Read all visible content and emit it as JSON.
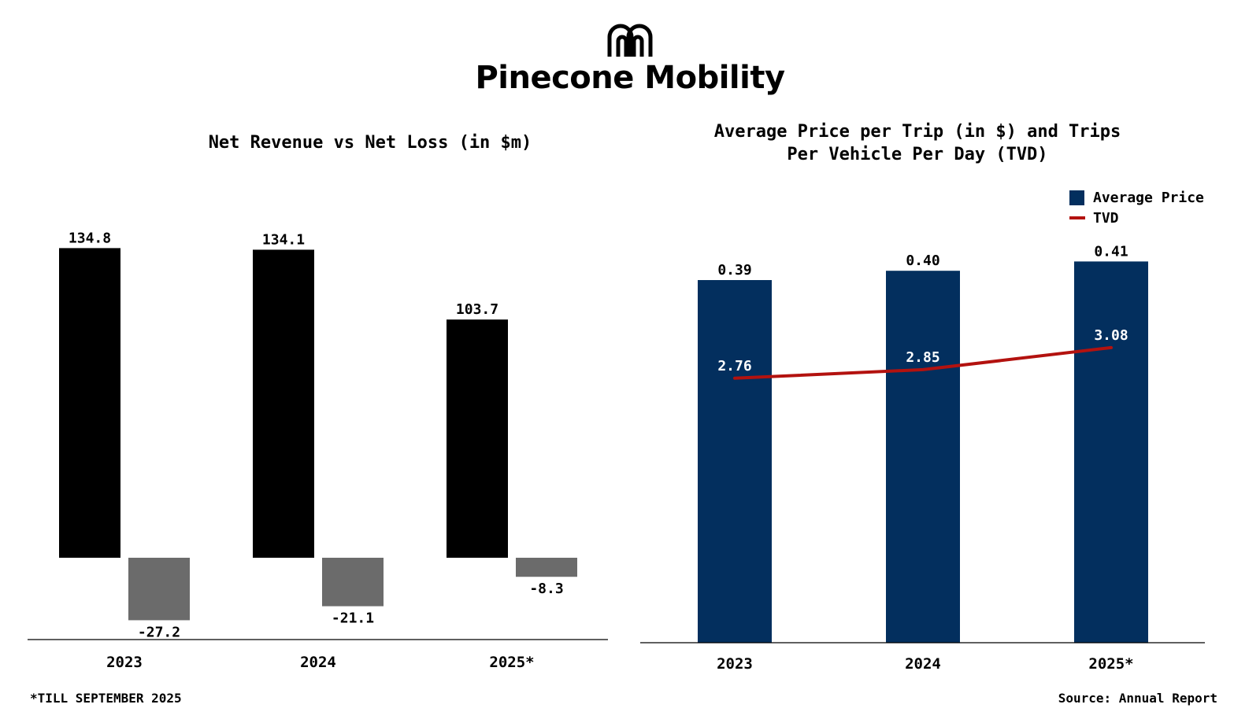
{
  "brand": {
    "name": "Pinecone Mobility",
    "logo_icon": "arch-m-logo-icon"
  },
  "colors": {
    "revenue": "#000000",
    "loss": "#6b6b6b",
    "avg_price": "#032f5e",
    "tvd": "#b3120f",
    "axis": "#000000"
  },
  "chart_data": [
    {
      "type": "bar",
      "title": "Net Revenue vs Net Loss (in $m)",
      "categories": [
        "2023",
        "2024",
        "2025*"
      ],
      "series": [
        {
          "name": "Net Revenue",
          "values": [
            134.8,
            134.1,
            103.7
          ]
        },
        {
          "name": "Net Loss",
          "values": [
            -27.2,
            -21.1,
            -8.3
          ]
        }
      ],
      "value_labels": {
        "revenue": [
          "134.8",
          "134.1",
          "103.7"
        ],
        "loss": [
          "-27.2",
          "-21.1",
          "-8.3"
        ]
      },
      "xlabel": "",
      "ylabel": "",
      "ylim": [
        -36,
        140
      ],
      "grid": false
    },
    {
      "type": "bar",
      "title_line1": "Average Price per Trip (in $) and Trips",
      "title_line2": "Per Vehicle Per Day (TVD)",
      "categories": [
        "2023",
        "2024",
        "2025*"
      ],
      "series": [
        {
          "name": "Average Price",
          "kind": "bar",
          "values": [
            0.39,
            0.4,
            0.41
          ],
          "labels": [
            "0.39",
            "0.40",
            "0.41"
          ]
        },
        {
          "name": "TVD",
          "kind": "line",
          "values": [
            2.76,
            2.85,
            3.08
          ],
          "labels": [
            "2.76",
            "2.85",
            "3.08"
          ]
        }
      ],
      "legend": [
        {
          "name": "Average Price",
          "marker": "square"
        },
        {
          "name": "TVD",
          "marker": "line"
        }
      ],
      "legend_position": "top-right",
      "ylim_bars": [
        0,
        0.5
      ],
      "ylim_line": [
        0,
        9
      ],
      "grid": false
    }
  ],
  "footer": {
    "note": "*TILL SEPTEMBER 2025",
    "source": "Source: Annual Report"
  }
}
